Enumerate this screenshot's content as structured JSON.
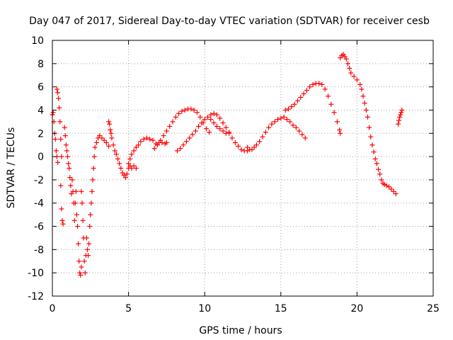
{
  "chart_data": {
    "type": "scatter",
    "title": "Day 047 of 2017, Sidereal Day-to-day VTEC variation (SDTVAR) for receiver cesb",
    "xlabel": "GPS time / hours",
    "ylabel": "SDTVAR / TECUs",
    "xlim": [
      0,
      25
    ],
    "ylim": [
      -12,
      10
    ],
    "xticks": [
      "0",
      "5",
      "10",
      "15",
      "20",
      "25"
    ],
    "yticks": [
      "-12",
      "-10",
      "-8",
      "-6",
      "-4",
      "-2",
      "0",
      "2",
      "4",
      "6",
      "8",
      "10"
    ],
    "grid": true,
    "marker": "plus",
    "color": "#ff0000",
    "series": [
      {
        "points": [
          [
            0.0,
            3.6
          ],
          [
            0.05,
            3.8
          ],
          [
            0.1,
            3.0
          ],
          [
            0.15,
            2.0
          ],
          [
            0.2,
            1.5
          ],
          [
            0.25,
            0.5
          ],
          [
            0.3,
            0.0
          ],
          [
            0.35,
            -0.5
          ],
          [
            0.3,
            5.8
          ],
          [
            0.35,
            5.5
          ],
          [
            0.4,
            5.0
          ],
          [
            0.45,
            4.2
          ],
          [
            0.5,
            3.0
          ],
          [
            0.55,
            1.5
          ],
          [
            0.6,
            0.0
          ],
          [
            0.55,
            -2.5
          ],
          [
            0.6,
            -4.5
          ],
          [
            0.65,
            -5.5
          ],
          [
            0.7,
            -5.8
          ],
          [
            0.8,
            2.5
          ],
          [
            0.85,
            1.8
          ],
          [
            0.9,
            1.0
          ],
          [
            0.95,
            0.5
          ],
          [
            1.0,
            0.0
          ],
          [
            1.05,
            -0.6
          ],
          [
            1.1,
            -1.0
          ],
          [
            1.15,
            -1.8
          ],
          [
            1.2,
            -2.5
          ],
          [
            1.25,
            -3.2
          ],
          [
            1.3,
            -2.0
          ],
          [
            1.35,
            -3.0
          ],
          [
            1.4,
            -4.0
          ],
          [
            1.45,
            -5.5
          ],
          [
            1.5,
            -4.0
          ],
          [
            1.55,
            -3.0
          ],
          [
            1.6,
            -5.0
          ],
          [
            1.65,
            -6.0
          ],
          [
            1.7,
            -7.5
          ],
          [
            1.75,
            -9.0
          ],
          [
            1.8,
            -10.0
          ],
          [
            1.85,
            -10.2
          ],
          [
            1.9,
            -9.5
          ],
          [
            1.9,
            -3.0
          ],
          [
            1.95,
            -4.0
          ],
          [
            2.0,
            -5.5
          ],
          [
            2.05,
            -7.0
          ],
          [
            2.1,
            -9.0
          ],
          [
            2.15,
            -10.0
          ],
          [
            2.2,
            -8.5
          ],
          [
            2.25,
            -7.0
          ],
          [
            2.3,
            -8.0
          ],
          [
            2.35,
            -8.5
          ],
          [
            2.4,
            -7.5
          ],
          [
            2.45,
            -6.0
          ],
          [
            2.5,
            -5.0
          ],
          [
            2.55,
            -4.0
          ],
          [
            2.6,
            -3.0
          ],
          [
            2.65,
            -2.0
          ],
          [
            2.7,
            -1.0
          ],
          [
            2.75,
            0.0
          ],
          [
            2.8,
            0.8
          ],
          [
            2.9,
            1.2
          ],
          [
            3.0,
            1.6
          ],
          [
            3.1,
            1.8
          ],
          [
            3.25,
            1.6
          ],
          [
            3.4,
            1.4
          ],
          [
            3.55,
            1.2
          ],
          [
            3.7,
            0.9
          ],
          [
            3.7,
            3.0
          ],
          [
            3.75,
            2.8
          ],
          [
            3.8,
            2.3
          ],
          [
            3.85,
            2.0
          ],
          [
            3.9,
            1.6
          ],
          [
            4.0,
            1.0
          ],
          [
            4.1,
            0.5
          ],
          [
            4.2,
            0.2
          ],
          [
            4.3,
            -0.2
          ],
          [
            4.4,
            -0.6
          ],
          [
            4.5,
            -1.0
          ],
          [
            4.6,
            -1.4
          ],
          [
            4.7,
            -1.6
          ],
          [
            4.8,
            -1.8
          ],
          [
            4.9,
            -1.5
          ],
          [
            5.0,
            -1.0
          ],
          [
            5.1,
            -0.8
          ],
          [
            5.2,
            -1.0
          ],
          [
            5.35,
            -0.8
          ],
          [
            5.5,
            -1.0
          ],
          [
            5.0,
            -0.6
          ],
          [
            5.1,
            -0.2
          ],
          [
            5.2,
            0.2
          ],
          [
            5.35,
            0.5
          ],
          [
            5.5,
            0.8
          ],
          [
            5.65,
            1.0
          ],
          [
            5.8,
            1.3
          ],
          [
            6.0,
            1.5
          ],
          [
            6.2,
            1.6
          ],
          [
            6.4,
            1.5
          ],
          [
            6.6,
            1.4
          ],
          [
            6.8,
            1.1
          ],
          [
            7.0,
            1.2
          ],
          [
            7.2,
            1.2
          ],
          [
            7.4,
            1.1
          ],
          [
            7.5,
            1.2
          ],
          [
            6.7,
            0.7
          ],
          [
            6.9,
            1.0
          ],
          [
            7.1,
            1.4
          ],
          [
            7.3,
            1.8
          ],
          [
            7.5,
            2.2
          ],
          [
            7.7,
            2.6
          ],
          [
            7.9,
            3.0
          ],
          [
            8.1,
            3.4
          ],
          [
            8.3,
            3.7
          ],
          [
            8.5,
            3.9
          ],
          [
            8.7,
            4.0
          ],
          [
            8.9,
            4.1
          ],
          [
            9.1,
            4.1
          ],
          [
            9.3,
            4.0
          ],
          [
            9.5,
            3.8
          ],
          [
            9.7,
            3.4
          ],
          [
            9.9,
            2.9
          ],
          [
            10.1,
            2.4
          ],
          [
            10.3,
            2.1
          ],
          [
            8.2,
            0.5
          ],
          [
            8.4,
            0.7
          ],
          [
            8.6,
            1.0
          ],
          [
            8.8,
            1.3
          ],
          [
            9.0,
            1.6
          ],
          [
            9.2,
            1.9
          ],
          [
            9.4,
            2.2
          ],
          [
            9.6,
            2.6
          ],
          [
            9.8,
            2.9
          ],
          [
            10.0,
            3.2
          ],
          [
            10.2,
            3.4
          ],
          [
            10.4,
            3.6
          ],
          [
            10.6,
            3.7
          ],
          [
            10.8,
            3.6
          ],
          [
            11.0,
            3.3
          ],
          [
            11.2,
            2.9
          ],
          [
            11.4,
            2.5
          ],
          [
            11.6,
            2.1
          ],
          [
            11.8,
            1.6
          ],
          [
            12.0,
            1.2
          ],
          [
            12.2,
            0.9
          ],
          [
            12.4,
            0.6
          ],
          [
            12.6,
            0.5
          ],
          [
            12.8,
            0.5
          ],
          [
            10.4,
            3.2
          ],
          [
            10.6,
            2.9
          ],
          [
            10.8,
            2.6
          ],
          [
            11.0,
            2.4
          ],
          [
            11.2,
            2.2
          ],
          [
            11.4,
            2.0
          ],
          [
            11.6,
            2.0
          ],
          [
            12.8,
            0.8
          ],
          [
            12.95,
            0.6
          ],
          [
            13.1,
            0.6
          ],
          [
            13.25,
            0.8
          ],
          [
            13.4,
            1.0
          ],
          [
            13.6,
            1.3
          ],
          [
            13.8,
            1.7
          ],
          [
            14.0,
            2.1
          ],
          [
            14.2,
            2.5
          ],
          [
            14.4,
            2.8
          ],
          [
            14.6,
            3.0
          ],
          [
            14.8,
            3.2
          ],
          [
            15.0,
            3.3
          ],
          [
            15.2,
            3.4
          ],
          [
            15.4,
            3.2
          ],
          [
            15.6,
            3.0
          ],
          [
            15.8,
            2.7
          ],
          [
            16.0,
            2.5
          ],
          [
            16.2,
            2.2
          ],
          [
            16.4,
            1.9
          ],
          [
            16.6,
            1.6
          ],
          [
            15.3,
            4.0
          ],
          [
            15.5,
            4.1
          ],
          [
            15.7,
            4.3
          ],
          [
            15.9,
            4.5
          ],
          [
            16.1,
            4.8
          ],
          [
            16.3,
            5.1
          ],
          [
            16.5,
            5.4
          ],
          [
            16.7,
            5.7
          ],
          [
            16.9,
            6.0
          ],
          [
            17.1,
            6.2
          ],
          [
            17.3,
            6.3
          ],
          [
            17.5,
            6.3
          ],
          [
            17.7,
            6.2
          ],
          [
            17.9,
            5.8
          ],
          [
            18.1,
            5.2
          ],
          [
            18.3,
            4.5
          ],
          [
            18.5,
            3.8
          ],
          [
            18.7,
            3.0
          ],
          [
            18.85,
            2.3
          ],
          [
            18.9,
            2.0
          ],
          [
            18.9,
            8.5
          ],
          [
            19.0,
            8.7
          ],
          [
            19.1,
            8.8
          ],
          [
            19.2,
            8.6
          ],
          [
            19.3,
            8.4
          ],
          [
            19.4,
            8.0
          ],
          [
            19.5,
            7.6
          ],
          [
            19.6,
            7.2
          ],
          [
            19.8,
            6.9
          ],
          [
            20.0,
            6.6
          ],
          [
            20.2,
            6.2
          ],
          [
            20.3,
            5.8
          ],
          [
            20.4,
            5.2
          ],
          [
            20.5,
            4.6
          ],
          [
            20.6,
            4.0
          ],
          [
            20.7,
            3.4
          ],
          [
            20.8,
            2.5
          ],
          [
            20.9,
            1.7
          ],
          [
            21.0,
            1.0
          ],
          [
            21.1,
            0.4
          ],
          [
            21.2,
            -0.2
          ],
          [
            21.3,
            -0.6
          ],
          [
            21.4,
            -1.1
          ],
          [
            21.5,
            -1.5
          ],
          [
            21.6,
            -2.0
          ],
          [
            21.7,
            -2.3
          ],
          [
            21.8,
            -2.4
          ],
          [
            21.95,
            -2.5
          ],
          [
            22.1,
            -2.6
          ],
          [
            22.25,
            -2.8
          ],
          [
            22.4,
            -3.0
          ],
          [
            22.55,
            -3.2
          ],
          [
            22.7,
            2.8
          ],
          [
            22.75,
            3.1
          ],
          [
            22.8,
            3.4
          ],
          [
            22.85,
            3.6
          ],
          [
            22.9,
            3.8
          ],
          [
            22.95,
            4.0
          ]
        ]
      }
    ]
  }
}
